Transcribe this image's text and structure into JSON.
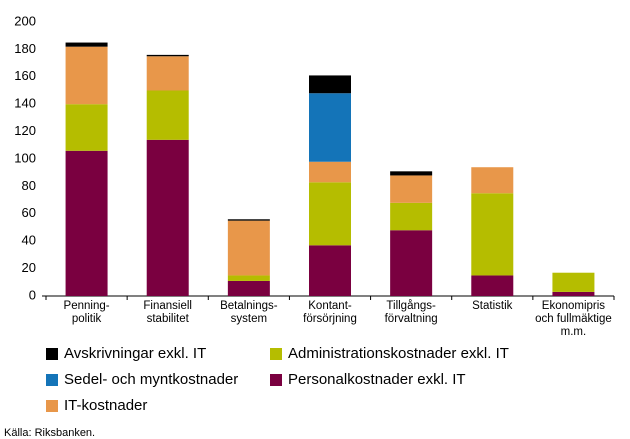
{
  "chart_data": {
    "type": "stacked_bar",
    "categories": [
      "Penning-\npolitik",
      "Finansiell\nstabilitet",
      "Betalnings-\nsystem",
      "Kontant-\nförsörjning",
      "Tillgångs-\nförvaltning",
      "Statistik",
      "Ekonomipris\noch fullmäktige\nm.m."
    ],
    "series": [
      {
        "name": "Personalkostnader exkl. IT",
        "color": "#7a0040",
        "values": [
          106,
          114,
          11,
          37,
          48,
          15,
          3
        ]
      },
      {
        "name": "Administrationskostnader exkl. IT",
        "color": "#b5bd00",
        "values": [
          34,
          36,
          4,
          46,
          20,
          60,
          14
        ]
      },
      {
        "name": "IT-kostnader",
        "color": "#e8974a",
        "values": [
          42,
          25,
          40,
          15,
          20,
          19,
          0
        ]
      },
      {
        "name": "Sedel- och myntkostnader",
        "color": "#1474b8",
        "values": [
          0,
          0,
          0,
          50,
          0,
          0,
          0
        ]
      },
      {
        "name": "Avskrivningar exkl. IT",
        "color": "#000000",
        "values": [
          3,
          1,
          1,
          13,
          3,
          0,
          0
        ]
      }
    ],
    "ylim": [
      0,
      200
    ],
    "yticks": [
      0,
      20,
      40,
      60,
      80,
      100,
      120,
      140,
      160,
      180,
      200
    ],
    "grid": false,
    "source": "Källa: Riksbanken."
  }
}
